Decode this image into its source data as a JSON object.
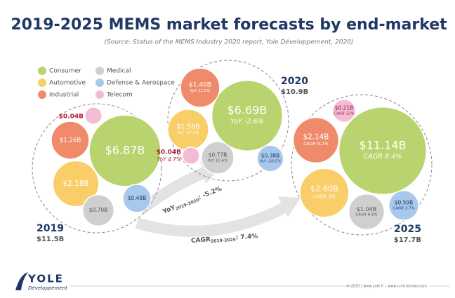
{
  "chart_data": {
    "type": "packed-bubble",
    "title": "2019-2025 MEMS market forecasts by end-market",
    "subtitle": "(Source: Status of the MEMS Industry 2020 report, Yole Développement, 2020)",
    "series": [
      {
        "name": "Consumer",
        "color": "#b9d46e"
      },
      {
        "name": "Automotive",
        "color": "#f9cd68"
      },
      {
        "name": "Industrial",
        "color": "#ef8b6b"
      },
      {
        "name": "Medical",
        "color": "#cfcfcf"
      },
      {
        "name": "Defense & Aerospace",
        "color": "#a9c9ec"
      },
      {
        "name": "Telecom",
        "color": "#f4bcd4"
      }
    ],
    "clusters": [
      {
        "year": "2019",
        "total": "$11.5B",
        "values": [
          6.87,
          2.18,
          1.26,
          0.7,
          0.48,
          0.04
        ],
        "value_labels": [
          "$6.87B",
          "$2.18B",
          "$1.26B",
          "$0.70B",
          "$0.48B",
          "$0.04B"
        ]
      },
      {
        "year": "2020",
        "total": "$10.9B",
        "values": [
          6.69,
          1.58,
          1.4,
          0.77,
          0.38,
          0.04
        ],
        "value_labels": [
          "$6.69B",
          "$1.58B",
          "$1.40B",
          "$0.77B",
          "$0.38B",
          "$0.04B"
        ],
        "notes": [
          "YoY -2.6%",
          "YoY -27.5%",
          "YoY 11.5%",
          "YoY 10.6%",
          "YoY -20.5%",
          "YoY 4.7%"
        ]
      },
      {
        "year": "2025",
        "total": "$17.7B",
        "values": [
          11.14,
          2.6,
          2.14,
          1.04,
          0.59,
          0.21
        ],
        "value_labels": [
          "$11.14B",
          "$2.60B",
          "$2.14B",
          "$1.04B",
          "$0.59B",
          "$0.21B"
        ],
        "notes": [
          "CAGR 8.4%",
          "CAGR 3%",
          "CAGR 9.2%",
          "CAGR 6.8%",
          "CAGR 3.7%",
          "CAGR 33%"
        ]
      }
    ],
    "arrows": [
      {
        "metric": "YoY",
        "period": "2019-2020",
        "value": ": -5.2%"
      },
      {
        "metric": "CAGR",
        "period": "2019-2025",
        "value": ": 7.4%"
      }
    ],
    "footer": {
      "logo": "YOLE",
      "logo_sub": "Développement",
      "credits": "© 2020 | www.yole.fr – www.i-micronews.com"
    }
  }
}
